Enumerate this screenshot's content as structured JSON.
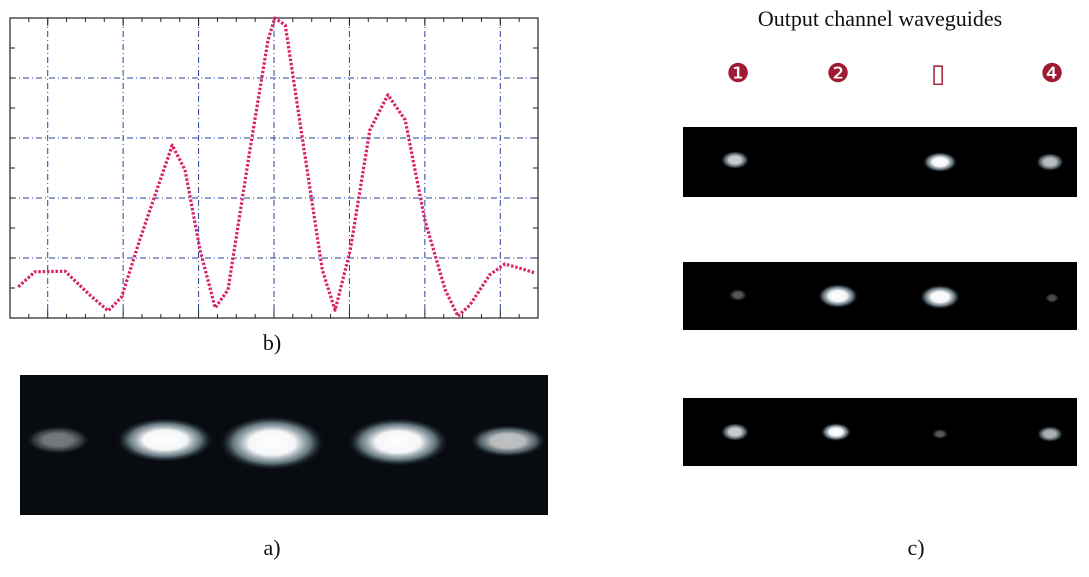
{
  "chart_data": {
    "type": "line",
    "color": "#d6236a",
    "grid": true,
    "grid_color": "#2b3f9e",
    "xlim": [
      0,
      7
    ],
    "ylim": [
      0,
      5
    ],
    "xticks": [
      0.5,
      1.5,
      2.5,
      3.5,
      4.5,
      5.5,
      6.5
    ],
    "yticks": [
      1,
      2,
      3,
      4
    ],
    "x": [
      0.11,
      0.33,
      0.73,
      1.06,
      1.3,
      1.48,
      1.72,
      2.15,
      2.32,
      2.52,
      2.72,
      2.89,
      3.18,
      3.42,
      3.51,
      3.65,
      3.84,
      4.14,
      4.31,
      4.51,
      4.77,
      5.01,
      5.24,
      5.5,
      5.77,
      5.94,
      6.1,
      6.36,
      6.56,
      6.76,
      6.96
    ],
    "values": [
      0.52,
      0.77,
      0.78,
      0.38,
      0.12,
      0.35,
      1.3,
      2.88,
      2.47,
      1.13,
      0.17,
      0.47,
      2.8,
      4.63,
      5.0,
      4.88,
      3.3,
      0.8,
      0.13,
      1.13,
      3.13,
      3.72,
      3.3,
      1.63,
      0.47,
      0.03,
      0.22,
      0.72,
      0.9,
      0.83,
      0.75
    ]
  },
  "labels": {
    "b": "b)",
    "a": "a)",
    "c": "c)"
  },
  "panel_c": {
    "title": "Output channel waveguides",
    "channels": [
      "❶",
      "❷",
      "▯",
      "❹"
    ]
  }
}
